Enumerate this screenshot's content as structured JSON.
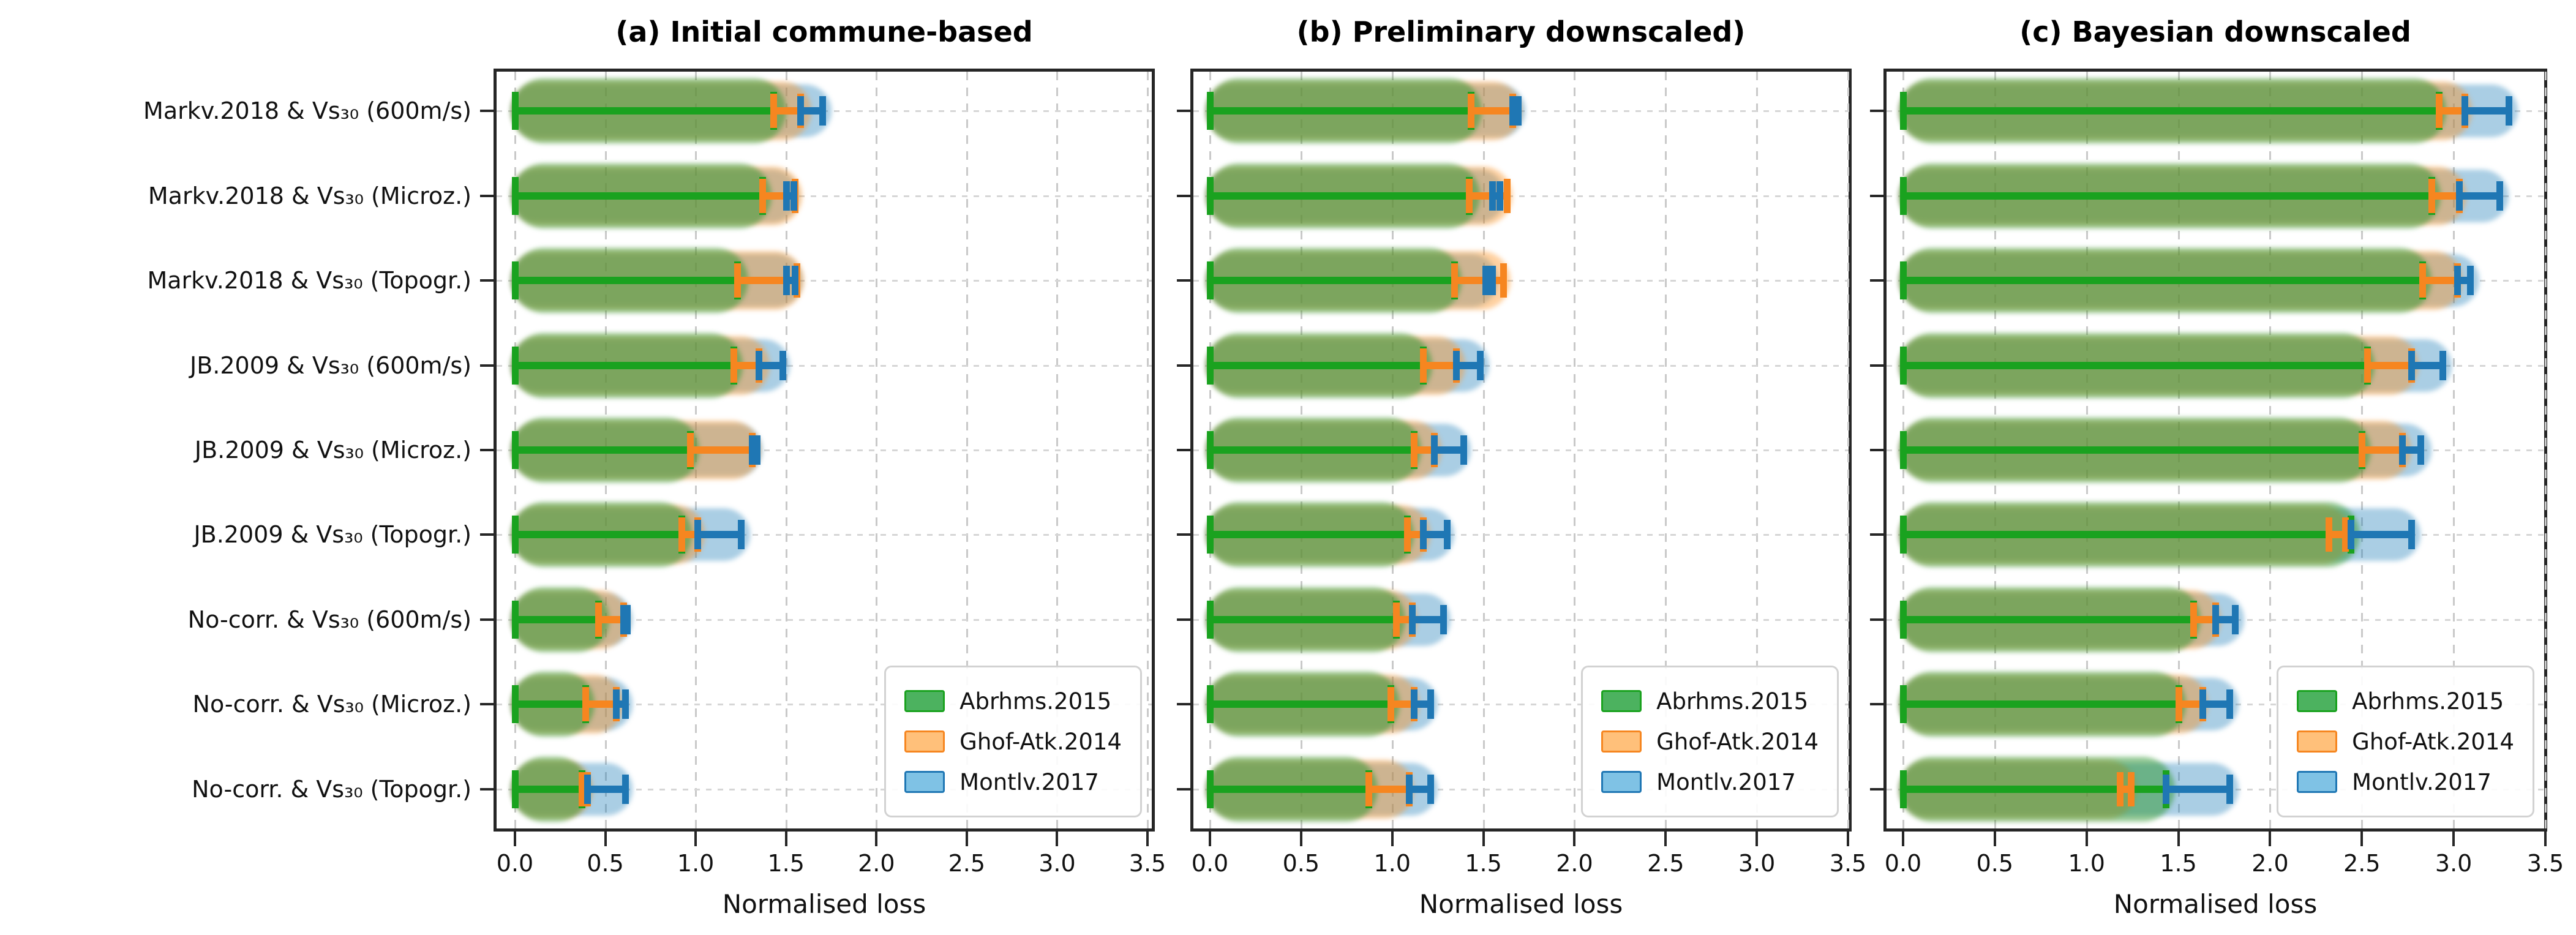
{
  "chart_data": {
    "type": "violin",
    "orientation": "horizontal",
    "xlabel": "Normalised loss",
    "xlim": [
      0,
      3.5
    ],
    "xticks": [
      0,
      0.5,
      1.0,
      1.5,
      2.0,
      2.5,
      3.0,
      3.5
    ],
    "xtick_labels": [
      "0.0",
      "0.5",
      "1.0",
      "1.5",
      "2.0",
      "2.5",
      "3.0",
      "3.5"
    ],
    "grid": true,
    "legend_position": "lower right",
    "categories": [
      "Markv.2018 & Vs₃₀ (600m/s)",
      "Markv.2018 & Vs₃₀ (Microz.)",
      "Markv.2018 & Vs₃₀ (Topogr.)",
      "JB.2009 & Vs₃₀ (600m/s)",
      "JB.2009 & Vs₃₀ (Microz.)",
      "JB.2009 & Vs₃₀ (Topogr.)",
      "No-corr. & Vs₃₀ (600m/s)",
      "No-corr. & Vs₃₀ (Microz.)",
      "No-corr. & Vs₃₀ (Topogr.)"
    ],
    "series": [
      {
        "name": "Abrhms.2015",
        "bar_color": "#1aa21f",
        "fill_color": "rgba(44,150,44,0.50)",
        "legend_fill": "#4cb25f"
      },
      {
        "name": "Ghof-Atk.2014",
        "bar_color": "#f68620",
        "fill_color": "rgba(255,145,30,0.42)",
        "legend_fill": "#ffc07a"
      },
      {
        "name": "Montlv.2017",
        "bar_color": "#1f77b4",
        "fill_color": "rgba(31,125,185,0.38)",
        "legend_fill": "#7fc2e5"
      }
    ],
    "panels": [
      {
        "title": "(a) Initial commune-based",
        "rows": [
          {
            "violin_max": [
              1.48,
              1.62,
              1.73
            ],
            "abrhms_bar": [
              0,
              1.43
            ],
            "ghofatk_bar": [
              1.43,
              1.58
            ],
            "montlv_bar": [
              1.58,
              1.7
            ]
          },
          {
            "violin_max": [
              1.4,
              1.57,
              1.55
            ],
            "abrhms_bar": [
              0,
              1.37
            ],
            "ghofatk_bar": [
              1.37,
              1.55
            ],
            "montlv_bar": [
              1.5,
              1.54
            ]
          },
          {
            "violin_max": [
              1.27,
              1.58,
              1.57
            ],
            "abrhms_bar": [
              0,
              1.23
            ],
            "ghofatk_bar": [
              1.23,
              1.56
            ],
            "montlv_bar": [
              1.5,
              1.55
            ]
          },
          {
            "violin_max": [
              1.24,
              1.39,
              1.5
            ],
            "abrhms_bar": [
              0,
              1.21
            ],
            "ghofatk_bar": [
              1.21,
              1.35
            ],
            "montlv_bar": [
              1.35,
              1.48
            ]
          },
          {
            "violin_max": [
              1.0,
              1.34,
              1.35
            ],
            "abrhms_bar": [
              0,
              0.97
            ],
            "ghofatk_bar": [
              0.97,
              1.31
            ],
            "montlv_bar": [
              1.31,
              1.34
            ]
          },
          {
            "violin_max": [
              0.96,
              1.03,
              1.28
            ],
            "abrhms_bar": [
              0,
              0.92
            ],
            "ghofatk_bar": [
              0.92,
              1.01
            ],
            "montlv_bar": [
              1.01,
              1.25
            ]
          },
          {
            "violin_max": [
              0.5,
              0.61,
              0.63
            ],
            "abrhms_bar": [
              0,
              0.46
            ],
            "ghofatk_bar": [
              0.46,
              0.6
            ],
            "montlv_bar": [
              0.6,
              0.62
            ]
          },
          {
            "violin_max": [
              0.42,
              0.58,
              0.63
            ],
            "abrhms_bar": [
              0,
              0.39
            ],
            "ghofatk_bar": [
              0.39,
              0.56
            ],
            "montlv_bar": [
              0.56,
              0.61
            ]
          },
          {
            "violin_max": [
              0.39,
              0.41,
              0.63
            ],
            "abrhms_bar": [
              0,
              0.37
            ],
            "ghofatk_bar": [
              0.37,
              0.4
            ],
            "montlv_bar": [
              0.4,
              0.61
            ]
          }
        ]
      },
      {
        "title": "(b) Preliminary downscaled)",
        "rows": [
          {
            "violin_max": [
              1.47,
              1.69,
              1.71
            ],
            "abrhms_bar": [
              0,
              1.43
            ],
            "ghofatk_bar": [
              1.43,
              1.66
            ],
            "montlv_bar": [
              1.66,
              1.69
            ]
          },
          {
            "violin_max": [
              1.46,
              1.64,
              1.6
            ],
            "abrhms_bar": [
              0,
              1.42
            ],
            "ghofatk_bar": [
              1.42,
              1.63
            ],
            "montlv_bar": [
              1.55,
              1.59
            ]
          },
          {
            "violin_max": [
              1.36,
              1.63,
              1.56
            ],
            "abrhms_bar": [
              0,
              1.34
            ],
            "ghofatk_bar": [
              1.34,
              1.61
            ],
            "montlv_bar": [
              1.51,
              1.55
            ]
          },
          {
            "violin_max": [
              1.2,
              1.38,
              1.51
            ],
            "abrhms_bar": [
              0,
              1.17
            ],
            "ghofatk_bar": [
              1.17,
              1.35
            ],
            "montlv_bar": [
              1.35,
              1.48
            ]
          },
          {
            "violin_max": [
              1.14,
              1.25,
              1.41
            ],
            "abrhms_bar": [
              0,
              1.12
            ],
            "ghofatk_bar": [
              1.12,
              1.23
            ],
            "montlv_bar": [
              1.23,
              1.39
            ]
          },
          {
            "violin_max": [
              1.1,
              1.19,
              1.32
            ],
            "abrhms_bar": [
              0,
              1.08
            ],
            "ghofatk_bar": [
              1.08,
              1.17
            ],
            "montlv_bar": [
              1.17,
              1.3
            ]
          },
          {
            "violin_max": [
              1.05,
              1.12,
              1.3
            ],
            "abrhms_bar": [
              0,
              1.02
            ],
            "ghofatk_bar": [
              1.02,
              1.11
            ],
            "montlv_bar": [
              1.11,
              1.28
            ]
          },
          {
            "violin_max": [
              1.02,
              1.13,
              1.23
            ],
            "abrhms_bar": [
              0,
              0.99
            ],
            "ghofatk_bar": [
              0.99,
              1.12
            ],
            "montlv_bar": [
              1.12,
              1.21
            ]
          },
          {
            "violin_max": [
              0.9,
              1.1,
              1.23
            ],
            "abrhms_bar": [
              0,
              0.87
            ],
            "ghofatk_bar": [
              0.87,
              1.09
            ],
            "montlv_bar": [
              1.09,
              1.21
            ]
          }
        ]
      },
      {
        "title": "(c) Bayesian downscaled",
        "rows": [
          {
            "violin_max": [
              2.94,
              3.08,
              3.33
            ],
            "abrhms_bar": [
              0,
              2.92
            ],
            "ghofatk_bar": [
              2.92,
              3.06
            ],
            "montlv_bar": [
              3.06,
              3.3
            ]
          },
          {
            "violin_max": [
              2.91,
              3.05,
              3.28
            ],
            "abrhms_bar": [
              0,
              2.88
            ],
            "ghofatk_bar": [
              2.88,
              3.03
            ],
            "montlv_bar": [
              3.03,
              3.25
            ]
          },
          {
            "violin_max": [
              2.86,
              3.03,
              3.12
            ],
            "abrhms_bar": [
              0,
              2.83
            ],
            "ghofatk_bar": [
              2.83,
              3.02
            ],
            "montlv_bar": [
              3.02,
              3.09
            ]
          },
          {
            "violin_max": [
              2.55,
              2.79,
              2.97
            ],
            "abrhms_bar": [
              0,
              2.53
            ],
            "ghofatk_bar": [
              2.53,
              2.77
            ],
            "montlv_bar": [
              2.77,
              2.94
            ]
          },
          {
            "violin_max": [
              2.53,
              2.75,
              2.86
            ],
            "abrhms_bar": [
              0,
              2.5
            ],
            "ghofatk_bar": [
              2.5,
              2.72
            ],
            "montlv_bar": [
              2.72,
              2.82
            ]
          },
          {
            "violin_max": [
              2.47,
              2.42,
              2.8
            ],
            "abrhms_bar": [
              0,
              2.44
            ],
            "ghofatk_bar": [
              2.32,
              2.41
            ],
            "montlv_bar": [
              2.44,
              2.77
            ]
          },
          {
            "violin_max": [
              1.6,
              1.71,
              1.84
            ],
            "abrhms_bar": [
              0,
              1.58
            ],
            "ghofatk_bar": [
              1.58,
              1.7
            ],
            "montlv_bar": [
              1.7,
              1.81
            ]
          },
          {
            "violin_max": [
              1.52,
              1.64,
              1.81
            ],
            "abrhms_bar": [
              0,
              1.5
            ],
            "ghofatk_bar": [
              1.5,
              1.63
            ],
            "montlv_bar": [
              1.63,
              1.78
            ]
          },
          {
            "violin_max": [
              1.46,
              1.25,
              1.81
            ],
            "abrhms_bar": [
              0,
              1.43
            ],
            "ghofatk_bar": [
              1.18,
              1.24
            ],
            "montlv_bar": [
              1.43,
              1.78
            ]
          }
        ]
      }
    ]
  }
}
